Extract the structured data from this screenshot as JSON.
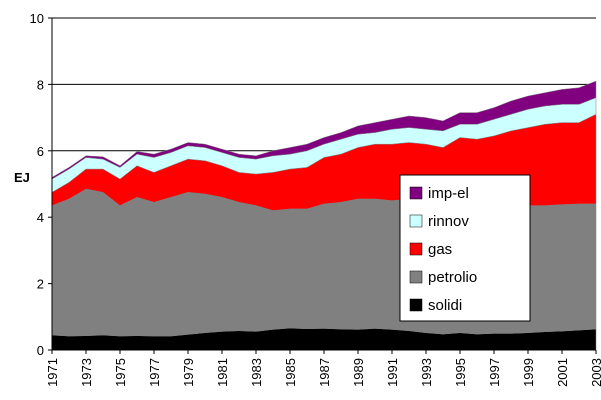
{
  "chart_data": {
    "type": "stacked-area",
    "y_label": "EJ",
    "x": [
      1971,
      1972,
      1973,
      1974,
      1975,
      1976,
      1977,
      1978,
      1979,
      1980,
      1981,
      1982,
      1983,
      1984,
      1985,
      1986,
      1987,
      1988,
      1989,
      1990,
      1991,
      1992,
      1993,
      1994,
      1995,
      1996,
      1997,
      1998,
      1999,
      2000,
      2001,
      2002,
      2003
    ],
    "xlim": [
      1971,
      2003
    ],
    "xticks": [
      1971,
      1973,
      1975,
      1977,
      1979,
      1981,
      1983,
      1985,
      1987,
      1989,
      1991,
      1993,
      1995,
      1997,
      1999,
      2001,
      2003
    ],
    "ylim": [
      0,
      10
    ],
    "yticks": [
      0,
      2,
      4,
      6,
      8,
      10
    ],
    "grid": true,
    "legend": "right",
    "series": [
      {
        "name": "solidi",
        "color": "#000000",
        "values": [
          0.45,
          0.42,
          0.43,
          0.45,
          0.42,
          0.43,
          0.42,
          0.42,
          0.47,
          0.52,
          0.56,
          0.58,
          0.56,
          0.62,
          0.66,
          0.64,
          0.65,
          0.63,
          0.62,
          0.65,
          0.62,
          0.58,
          0.52,
          0.48,
          0.52,
          0.48,
          0.5,
          0.5,
          0.52,
          0.55,
          0.57,
          0.6,
          0.63
        ]
      },
      {
        "name": "petrolio",
        "color": "#808080",
        "values": [
          3.9,
          4.13,
          4.42,
          4.3,
          3.93,
          4.17,
          4.03,
          4.18,
          4.28,
          4.18,
          4.04,
          3.87,
          3.79,
          3.58,
          3.59,
          3.61,
          3.75,
          3.82,
          3.93,
          3.9,
          3.88,
          3.97,
          3.93,
          3.82,
          3.88,
          4.02,
          3.9,
          3.85,
          3.83,
          3.8,
          3.81,
          3.8,
          3.77
        ]
      },
      {
        "name": "gas",
        "color": "#ff0000",
        "values": [
          0.4,
          0.5,
          0.6,
          0.7,
          0.8,
          0.95,
          0.9,
          0.95,
          1.0,
          1.0,
          0.95,
          0.9,
          0.95,
          1.15,
          1.2,
          1.25,
          1.4,
          1.45,
          1.55,
          1.65,
          1.7,
          1.7,
          1.75,
          1.8,
          2.0,
          1.85,
          2.05,
          2.25,
          2.35,
          2.45,
          2.47,
          2.45,
          2.7
        ]
      },
      {
        "name": "rinnov",
        "color": "#ccffff",
        "values": [
          0.4,
          0.4,
          0.35,
          0.3,
          0.35,
          0.35,
          0.45,
          0.4,
          0.4,
          0.4,
          0.4,
          0.45,
          0.45,
          0.5,
          0.45,
          0.5,
          0.4,
          0.45,
          0.4,
          0.35,
          0.45,
          0.45,
          0.45,
          0.5,
          0.4,
          0.45,
          0.5,
          0.5,
          0.55,
          0.55,
          0.55,
          0.55,
          0.5
        ]
      },
      {
        "name": "imp-el",
        "color": "#800080",
        "values": [
          0.05,
          0.05,
          0.05,
          0.07,
          0.05,
          0.08,
          0.1,
          0.1,
          0.1,
          0.1,
          0.1,
          0.1,
          0.1,
          0.15,
          0.2,
          0.2,
          0.2,
          0.2,
          0.25,
          0.3,
          0.3,
          0.35,
          0.35,
          0.3,
          0.35,
          0.35,
          0.35,
          0.4,
          0.4,
          0.4,
          0.45,
          0.5,
          0.5
        ]
      }
    ]
  }
}
